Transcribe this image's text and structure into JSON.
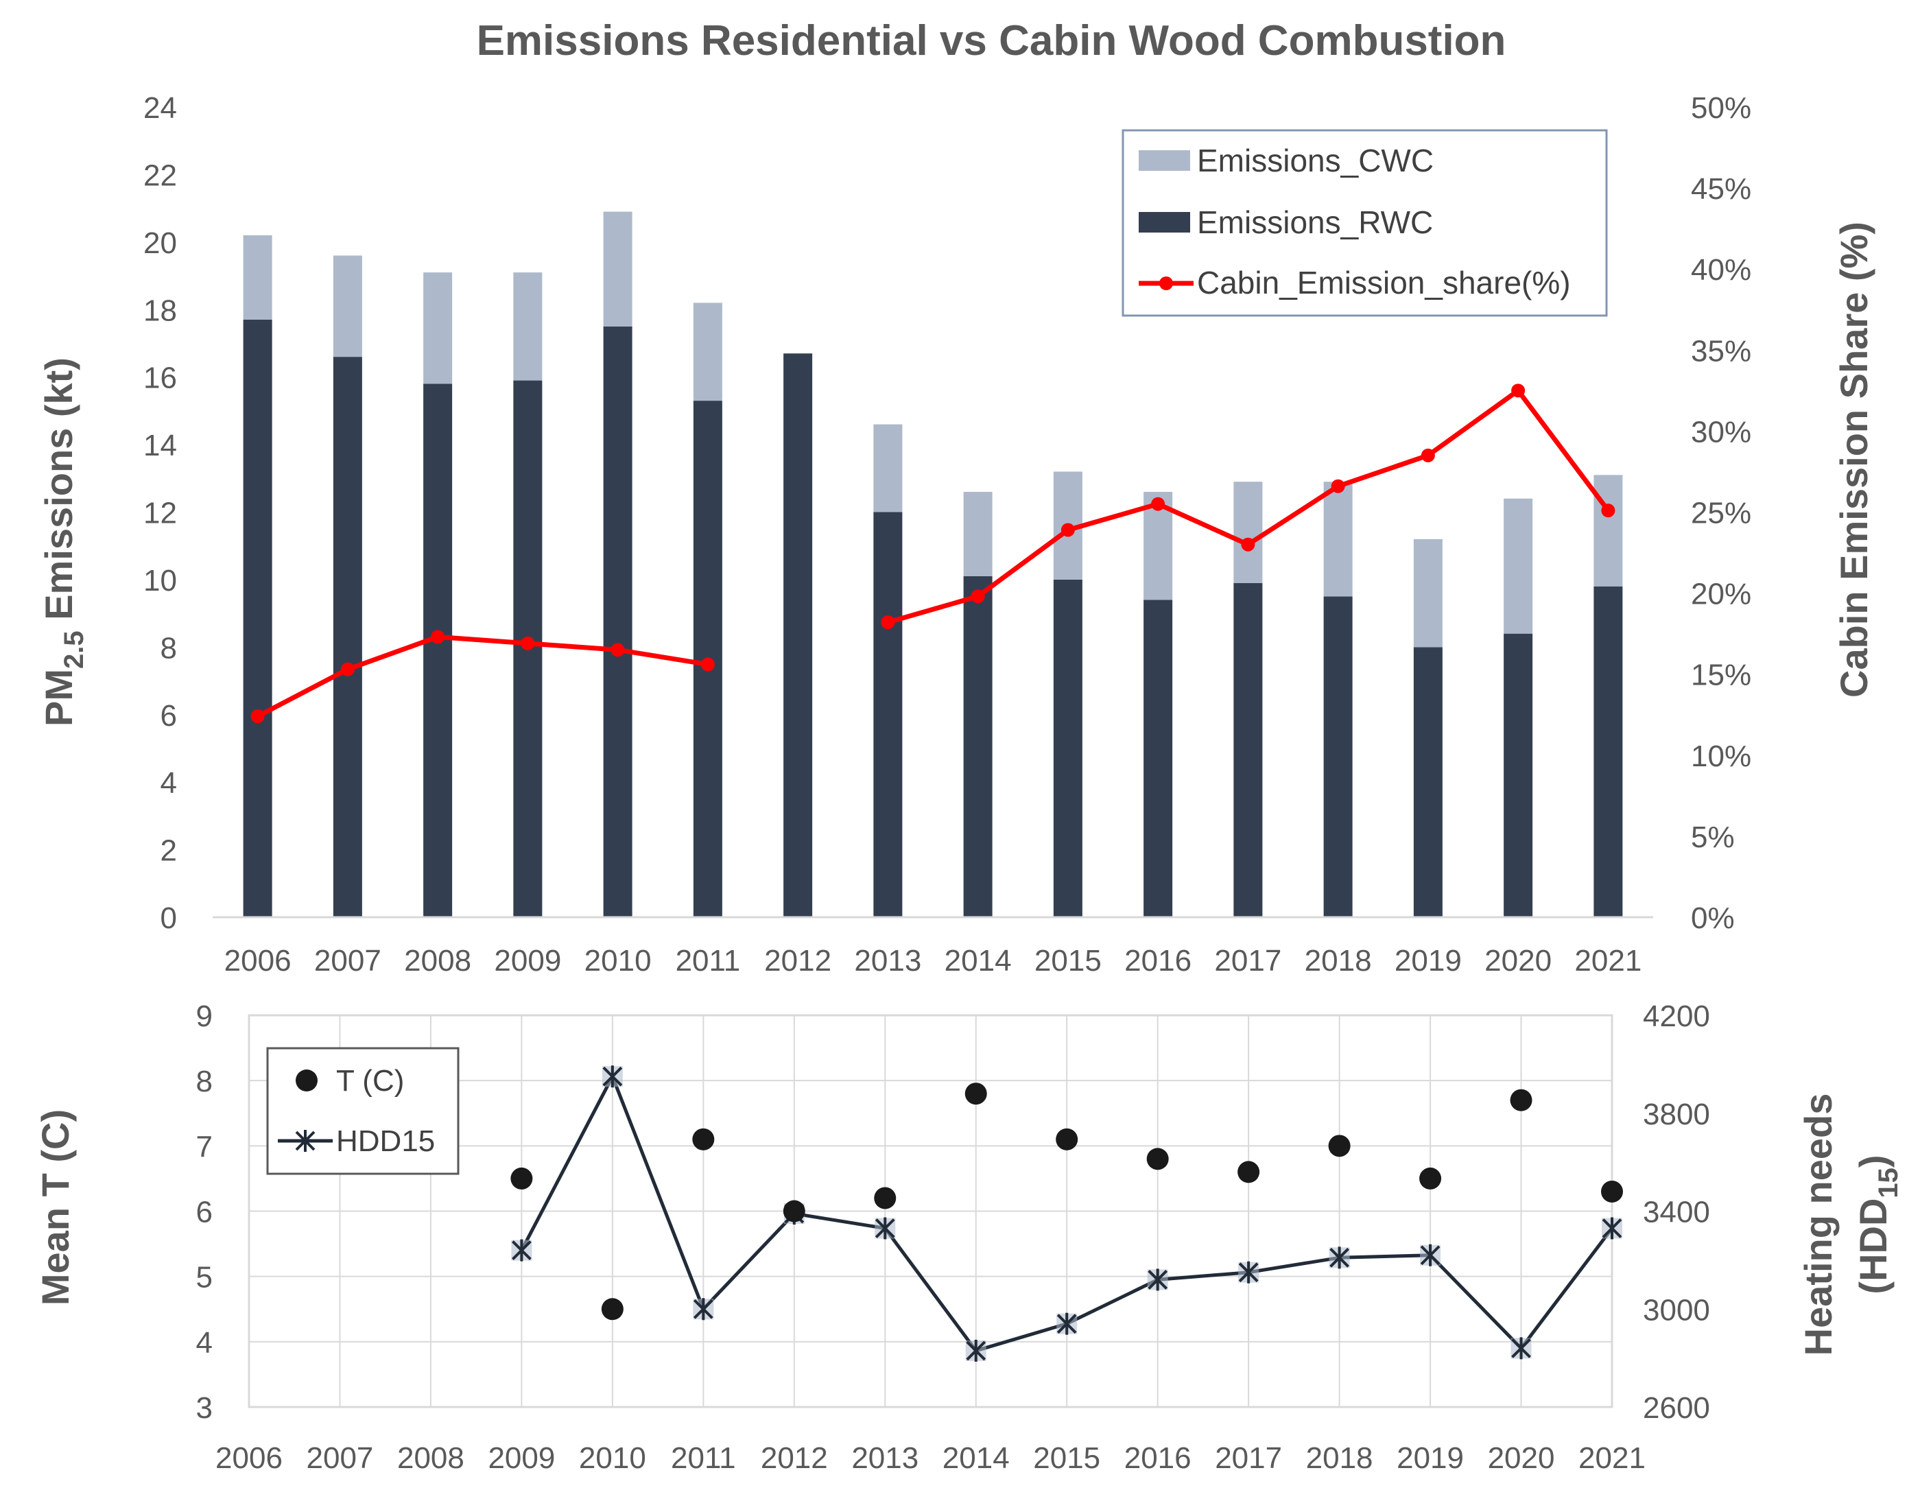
{
  "chart_data": [
    {
      "type": "bar",
      "title": "Emissions Residential vs Cabin Wood Combustion",
      "ylabel_main": "PM",
      "ylabel_sub": "2.5",
      "ylabel_rest": " Emissions (kt)",
      "y2label": "Cabin Emission Share (%)",
      "categories": [
        "2006",
        "2007",
        "2008",
        "2009",
        "2010",
        "2011",
        "2012",
        "2013",
        "2014",
        "2015",
        "2016",
        "2017",
        "2018",
        "2019",
        "2020",
        "2021"
      ],
      "ylim": [
        0,
        24
      ],
      "yticks": [
        "0",
        "2",
        "4",
        "6",
        "8",
        "10",
        "12",
        "14",
        "16",
        "18",
        "20",
        "22",
        "24"
      ],
      "y2lim": [
        0,
        50
      ],
      "y2ticks": [
        "0%",
        "5%",
        "10%",
        "15%",
        "20%",
        "25%",
        "30%",
        "35%",
        "40%",
        "45%",
        "50%"
      ],
      "stacked": true,
      "colors": {
        "rwc": "#333f50",
        "cwc": "#adb9ca",
        "share": "#ff0000",
        "axis_text": "#595959"
      },
      "series": [
        {
          "name": "Emissions_RWC",
          "values": [
            17.7,
            16.6,
            15.8,
            15.9,
            17.5,
            15.3,
            16.7,
            12.0,
            10.1,
            10.0,
            9.4,
            9.9,
            9.5,
            8.0,
            8.4,
            9.8
          ]
        },
        {
          "name": "Emissions_CWC",
          "values": [
            2.5,
            3.0,
            3.3,
            3.2,
            3.4,
            2.9,
            0.0,
            2.6,
            2.5,
            3.2,
            3.2,
            3.0,
            3.4,
            3.2,
            4.0,
            3.3
          ]
        },
        {
          "name": "Cabin_Emission_share(%)",
          "axis": "right",
          "values": [
            12.4,
            15.3,
            17.3,
            16.9,
            16.5,
            15.6,
            null,
            18.2,
            19.8,
            23.9,
            25.5,
            23.0,
            26.6,
            28.5,
            32.5,
            25.1
          ]
        }
      ],
      "legend": {
        "position": "top-right",
        "entries": [
          "Emissions_CWC",
          "Emissions_RWC",
          "Cabin_Emission_share(%)"
        ]
      }
    },
    {
      "type": "line",
      "ylabel": "Mean T (C)",
      "y2label_main": "Heating needs",
      "y2label_pre": "(HDD",
      "y2label_sub": "15",
      "y2label_post": ")",
      "categories": [
        "2006",
        "2007",
        "2008",
        "2009",
        "2010",
        "2011",
        "2012",
        "2013",
        "2014",
        "2015",
        "2016",
        "2017",
        "2018",
        "2019",
        "2020",
        "2021"
      ],
      "ylim": [
        3,
        9
      ],
      "yticks": [
        "3",
        "4",
        "5",
        "6",
        "7",
        "8",
        "9"
      ],
      "y2lim": [
        2600,
        4200
      ],
      "y2ticks": [
        "2600",
        "3000",
        "3400",
        "3800",
        "4200"
      ],
      "grid": true,
      "colors": {
        "temp": "#1a1a1a",
        "hdd": "#222b38",
        "grid": "#d9d9d9"
      },
      "series": [
        {
          "name": "T (C)",
          "marker": "circle",
          "values": [
            null,
            null,
            null,
            6.5,
            4.5,
            7.1,
            6.0,
            6.2,
            7.8,
            7.1,
            6.8,
            6.6,
            7.0,
            6.5,
            7.7,
            6.3
          ]
        },
        {
          "name": "HDD15",
          "axis": "right",
          "marker": "asterisk",
          "values": [
            null,
            null,
            null,
            3240,
            3950,
            3000,
            3390,
            3330,
            2830,
            2940,
            3120,
            3150,
            3210,
            3220,
            2840,
            3330
          ]
        }
      ],
      "legend": {
        "position": "top-left",
        "entries": [
          "T (C)",
          "HDD15"
        ]
      }
    }
  ]
}
